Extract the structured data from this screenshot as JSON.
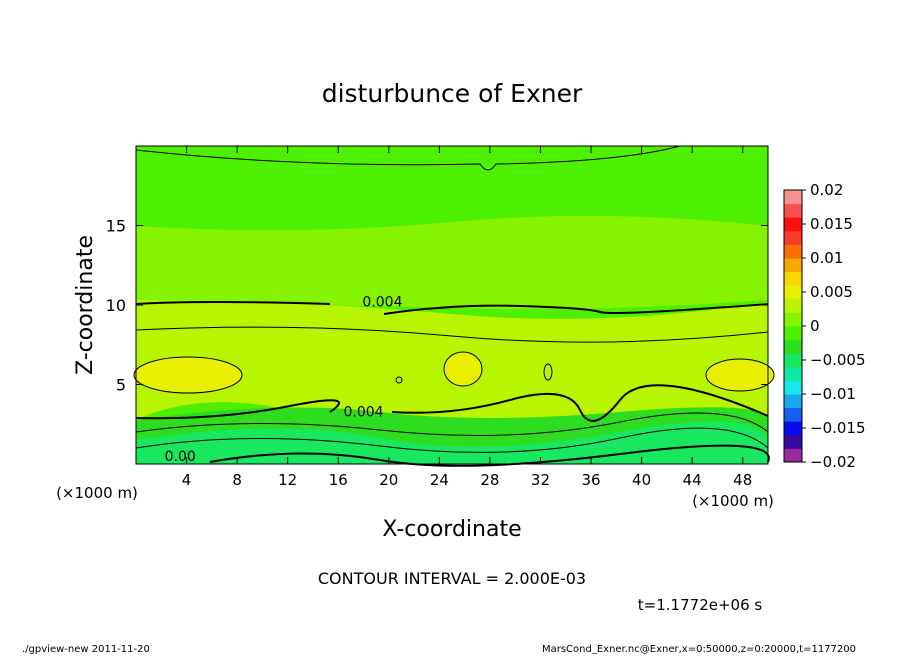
{
  "chart_data": {
    "type": "heatmap",
    "title": "disturbunce of Exner",
    "xlabel": "X-coordinate",
    "ylabel": "Z-coordinate",
    "x_unit": "(×1000 m)",
    "x_unit_bottom": "(×1000 m)",
    "xlim": [
      0,
      50
    ],
    "ylim": [
      0,
      20
    ],
    "xticks": [
      4,
      8,
      12,
      16,
      20,
      24,
      28,
      32,
      36,
      40,
      44,
      48
    ],
    "yticks": [
      5,
      10,
      15
    ],
    "contour_labels": [
      {
        "text": "0.004",
        "x": 19.5,
        "y": 9.9
      },
      {
        "text": "0.004",
        "x": 18.0,
        "y": 3.0
      },
      {
        "text": "0.00",
        "x": 3.5,
        "y": 0.2
      }
    ],
    "contour_interval_text": "CONTOUR INTERVAL = 2.000E-03",
    "time_text": "t=1.1772e+06 s",
    "colorbar": {
      "ticks": [
        "0.02",
        "0.015",
        "0.01",
        "0.005",
        "0",
        "−0.005",
        "−0.01",
        "−0.015",
        "−0.02"
      ],
      "range": [
        -0.02,
        0.02
      ],
      "colors": [
        "#9a2a9a",
        "#3a0aa0",
        "#0a0aee",
        "#1a5ef0",
        "#19a8f0",
        "#18e8e8",
        "#10e8a0",
        "#18e860",
        "#2edc20",
        "#4cf000",
        "#86f300",
        "#b8f500",
        "#e8f000",
        "#f8d800",
        "#f8a800",
        "#f87000",
        "#f83a2a",
        "#f81010",
        "#f85050",
        "#f89090"
      ]
    },
    "field_colors": {
      "top": "#4cf000",
      "upper": "#86f300",
      "mid": "#b8f500",
      "high": "#e8f000",
      "low": "#2edc20",
      "lower": "#18e860"
    }
  },
  "footer": {
    "left": "./gpview-new   2011-11-20",
    "right": "MarsCond_Exner.nc@Exner,x=0:50000,z=0:20000,t=1177200"
  }
}
